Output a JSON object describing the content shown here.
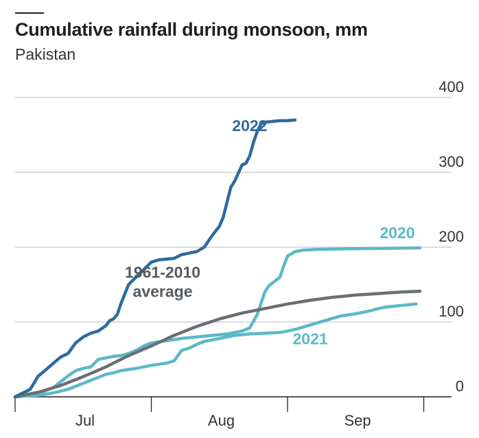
{
  "header": {
    "title": "Cumulative rainfall during monsoon, mm",
    "subtitle": "Pakistan"
  },
  "chart_data": {
    "type": "line",
    "title": "Cumulative rainfall during monsoon, mm",
    "subtitle": "Pakistan",
    "xlabel": "",
    "ylabel": "",
    "x_unit": "days from Jun 15",
    "xlim": [
      0,
      107
    ],
    "ylim": [
      0,
      400
    ],
    "yticks": [
      0,
      100,
      200,
      300,
      400
    ],
    "ytick_labels": [
      "0",
      "100",
      "200",
      "300",
      "400"
    ],
    "x_month_labels": [
      {
        "label": "Jul",
        "day": 18.5
      },
      {
        "label": "Aug",
        "day": 54.5
      },
      {
        "label": "Sep",
        "day": 90.5
      }
    ],
    "x_ticks": [
      0,
      36,
      72,
      108
    ],
    "grid": true,
    "legend": "direct labels on lines",
    "series": [
      {
        "name": "2022",
        "color": "#2e6a9e",
        "label_at": [
          62,
          355
        ],
        "points": [
          [
            0,
            0
          ],
          [
            4,
            10
          ],
          [
            6,
            27
          ],
          [
            9,
            40
          ],
          [
            12,
            53
          ],
          [
            14,
            58
          ],
          [
            16,
            72
          ],
          [
            18,
            80
          ],
          [
            20,
            85
          ],
          [
            22,
            88
          ],
          [
            24,
            95
          ],
          [
            25,
            102
          ],
          [
            26,
            104
          ],
          [
            27,
            110
          ],
          [
            28,
            125
          ],
          [
            30,
            150
          ],
          [
            32,
            160
          ],
          [
            34,
            170
          ],
          [
            36,
            180
          ],
          [
            38,
            183
          ],
          [
            40,
            184
          ],
          [
            42,
            185
          ],
          [
            44,
            190
          ],
          [
            46,
            192
          ],
          [
            48,
            194
          ],
          [
            50,
            200
          ],
          [
            52,
            215
          ],
          [
            54,
            228
          ],
          [
            55,
            240
          ],
          [
            56,
            260
          ],
          [
            57,
            280
          ],
          [
            58,
            288
          ],
          [
            60,
            310
          ],
          [
            61,
            312
          ],
          [
            62,
            322
          ],
          [
            63,
            340
          ],
          [
            64,
            355
          ],
          [
            65,
            365
          ],
          [
            66,
            367
          ],
          [
            68,
            368
          ],
          [
            70,
            369
          ],
          [
            72,
            369
          ],
          [
            74,
            370
          ]
        ]
      },
      {
        "name": "2020",
        "color": "#5cb8c8",
        "label_at": [
          101,
          212
        ],
        "points": [
          [
            0,
            0
          ],
          [
            5,
            3
          ],
          [
            8,
            8
          ],
          [
            10,
            12
          ],
          [
            12,
            20
          ],
          [
            14,
            28
          ],
          [
            16,
            35
          ],
          [
            18,
            38
          ],
          [
            20,
            40
          ],
          [
            22,
            50
          ],
          [
            24,
            52
          ],
          [
            26,
            54
          ],
          [
            28,
            55
          ],
          [
            30,
            58
          ],
          [
            32,
            62
          ],
          [
            34,
            68
          ],
          [
            36,
            72
          ],
          [
            40,
            75
          ],
          [
            44,
            78
          ],
          [
            48,
            80
          ],
          [
            52,
            82
          ],
          [
            56,
            84
          ],
          [
            58,
            86
          ],
          [
            60,
            88
          ],
          [
            62,
            92
          ],
          [
            64,
            110
          ],
          [
            66,
            140
          ],
          [
            67,
            148
          ],
          [
            68,
            152
          ],
          [
            70,
            160
          ],
          [
            71,
            175
          ],
          [
            72,
            188
          ],
          [
            74,
            194
          ],
          [
            76,
            196
          ],
          [
            80,
            197
          ],
          [
            90,
            198
          ],
          [
            107,
            199
          ]
        ]
      },
      {
        "name": "2021",
        "color": "#5cb8c8",
        "label_at": [
          78,
          70
        ],
        "points": [
          [
            0,
            0
          ],
          [
            6,
            2
          ],
          [
            10,
            5
          ],
          [
            14,
            10
          ],
          [
            18,
            18
          ],
          [
            20,
            22
          ],
          [
            22,
            26
          ],
          [
            24,
            30
          ],
          [
            26,
            32
          ],
          [
            28,
            35
          ],
          [
            32,
            38
          ],
          [
            36,
            42
          ],
          [
            40,
            45
          ],
          [
            42,
            48
          ],
          [
            44,
            62
          ],
          [
            46,
            65
          ],
          [
            48,
            70
          ],
          [
            50,
            74
          ],
          [
            54,
            78
          ],
          [
            58,
            82
          ],
          [
            62,
            84
          ],
          [
            66,
            85
          ],
          [
            70,
            86
          ],
          [
            74,
            90
          ],
          [
            78,
            96
          ],
          [
            82,
            102
          ],
          [
            86,
            108
          ],
          [
            90,
            111
          ],
          [
            94,
            115
          ],
          [
            96,
            118
          ],
          [
            98,
            120
          ],
          [
            102,
            122
          ],
          [
            106,
            124
          ]
        ]
      },
      {
        "name": "1961-2010 average",
        "label_lines": [
          "1961-2010",
          "average"
        ],
        "color": "#6b6f73",
        "label_at": [
          39,
          159
        ],
        "points": [
          [
            0,
            0
          ],
          [
            6,
            6
          ],
          [
            12,
            15
          ],
          [
            18,
            27
          ],
          [
            24,
            40
          ],
          [
            30,
            55
          ],
          [
            36,
            68
          ],
          [
            42,
            82
          ],
          [
            48,
            94
          ],
          [
            54,
            104
          ],
          [
            60,
            112
          ],
          [
            66,
            118
          ],
          [
            72,
            124
          ],
          [
            78,
            129
          ],
          [
            84,
            133
          ],
          [
            90,
            136
          ],
          [
            96,
            138
          ],
          [
            102,
            140
          ],
          [
            107,
            141
          ]
        ]
      }
    ]
  }
}
